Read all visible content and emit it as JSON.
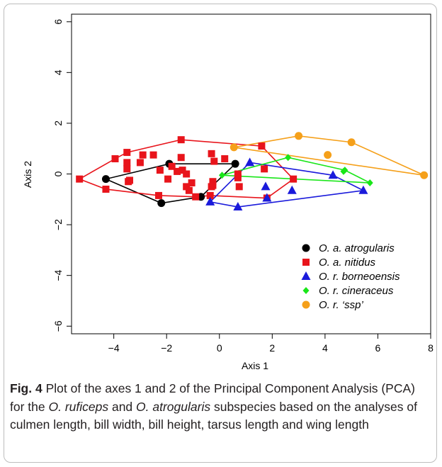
{
  "chart_data": {
    "type": "scatter",
    "xlabel": "Axis 1",
    "ylabel": "Axis 2",
    "xlim": [
      -5.6,
      8.0
    ],
    "ylim": [
      -6.3,
      6.3
    ],
    "xticks": [
      -4,
      -2,
      0,
      2,
      4,
      6,
      8
    ],
    "yticks": [
      -6,
      -4,
      -2,
      0,
      2,
      4,
      6
    ],
    "grid": false,
    "legend_position": "bottom-right",
    "series": [
      {
        "name": "O. a. atrogularis",
        "color": "#000000",
        "marker": "circle",
        "points": [
          [
            -4.3,
            -0.2
          ],
          [
            -1.9,
            0.4
          ],
          [
            -2.2,
            -1.15
          ],
          [
            -0.7,
            -0.9
          ],
          [
            0.6,
            0.4
          ]
        ],
        "hull": [
          [
            -4.3,
            -0.2
          ],
          [
            -2.2,
            -1.15
          ],
          [
            -0.7,
            -0.9
          ],
          [
            0.6,
            0.4
          ],
          [
            -1.9,
            0.4
          ]
        ]
      },
      {
        "name": "O. a. nitidus",
        "color": "#e8141b",
        "marker": "square",
        "points": [
          [
            -5.3,
            -0.2
          ],
          [
            -4.3,
            -0.6
          ],
          [
            -3.95,
            0.6
          ],
          [
            -3.5,
            0.85
          ],
          [
            -3.5,
            0.45
          ],
          [
            -3.5,
            0.2
          ],
          [
            -3.45,
            -0.3
          ],
          [
            -3.4,
            -0.25
          ],
          [
            -3.0,
            0.45
          ],
          [
            -2.9,
            0.75
          ],
          [
            -2.5,
            0.75
          ],
          [
            -2.3,
            -0.85
          ],
          [
            -2.25,
            0.15
          ],
          [
            -1.8,
            0.3
          ],
          [
            -1.95,
            -0.2
          ],
          [
            -1.6,
            0.1
          ],
          [
            -1.45,
            1.35
          ],
          [
            -1.45,
            0.65
          ],
          [
            -1.4,
            0.15
          ],
          [
            -1.25,
            0.0
          ],
          [
            -1.25,
            -0.5
          ],
          [
            -1.15,
            -0.65
          ],
          [
            -1.05,
            -0.35
          ],
          [
            -0.9,
            -0.9
          ],
          [
            -0.3,
            0.8
          ],
          [
            -0.2,
            0.5
          ],
          [
            -0.25,
            -0.3
          ],
          [
            -0.3,
            -0.5
          ],
          [
            -0.35,
            -0.85
          ],
          [
            -0.25,
            -0.45
          ],
          [
            0.2,
            0.6
          ],
          [
            0.7,
            0.0
          ],
          [
            0.7,
            -0.15
          ],
          [
            0.75,
            -0.5
          ],
          [
            1.6,
            1.1
          ],
          [
            1.7,
            0.2
          ],
          [
            1.8,
            -0.95
          ],
          [
            2.8,
            -0.2
          ]
        ],
        "hull": [
          [
            -5.3,
            -0.2
          ],
          [
            -3.95,
            0.6
          ],
          [
            -3.5,
            0.85
          ],
          [
            -1.45,
            1.35
          ],
          [
            1.6,
            1.1
          ],
          [
            2.8,
            -0.2
          ],
          [
            1.8,
            -0.95
          ],
          [
            -0.35,
            -0.85
          ],
          [
            -0.9,
            -0.9
          ],
          [
            -2.3,
            -0.85
          ],
          [
            -4.3,
            -0.6
          ]
        ]
      },
      {
        "name": "O. r. borneoensis",
        "color": "#1a1adb",
        "marker": "triangle",
        "points": [
          [
            -0.35,
            -1.1
          ],
          [
            0.7,
            -1.3
          ],
          [
            1.15,
            0.45
          ],
          [
            1.75,
            -0.5
          ],
          [
            1.8,
            -0.95
          ],
          [
            2.75,
            -0.65
          ],
          [
            4.3,
            -0.05
          ],
          [
            5.45,
            -0.65
          ]
        ],
        "hull": [
          [
            -0.35,
            -1.1
          ],
          [
            1.15,
            0.45
          ],
          [
            4.3,
            -0.05
          ],
          [
            5.45,
            -0.65
          ],
          [
            0.7,
            -1.3
          ]
        ]
      },
      {
        "name": "O. r. cineraceus",
        "color": "#19e619",
        "marker": "diamond",
        "points": [
          [
            0.1,
            -0.05
          ],
          [
            2.6,
            0.65
          ],
          [
            4.7,
            0.1
          ],
          [
            4.75,
            0.15
          ],
          [
            5.7,
            -0.35
          ]
        ],
        "hull": [
          [
            0.1,
            -0.05
          ],
          [
            2.6,
            0.65
          ],
          [
            4.75,
            0.15
          ],
          [
            5.7,
            -0.35
          ]
        ]
      },
      {
        "name": "O. r. ‘ssp’",
        "color": "#f5a01a",
        "marker": "circle",
        "points": [
          [
            0.55,
            1.05
          ],
          [
            3.0,
            1.5
          ],
          [
            4.1,
            0.75
          ],
          [
            5.0,
            1.25
          ],
          [
            7.75,
            -0.05
          ]
        ],
        "hull": [
          [
            0.55,
            1.05
          ],
          [
            3.0,
            1.5
          ],
          [
            5.0,
            1.25
          ],
          [
            7.75,
            -0.05
          ]
        ]
      }
    ]
  },
  "caption": {
    "fig_label": "Fig. 4",
    "text_1": "  Plot of the axes 1 and 2 of the Principal Component Analysis (PCA) for the ",
    "species_1": "O. ruficeps",
    "text_2": " and ",
    "species_2": "O. atrogularis",
    "text_3": " subspecies based on the analyses of culmen length, bill width, bill height, tarsus length and wing length"
  }
}
